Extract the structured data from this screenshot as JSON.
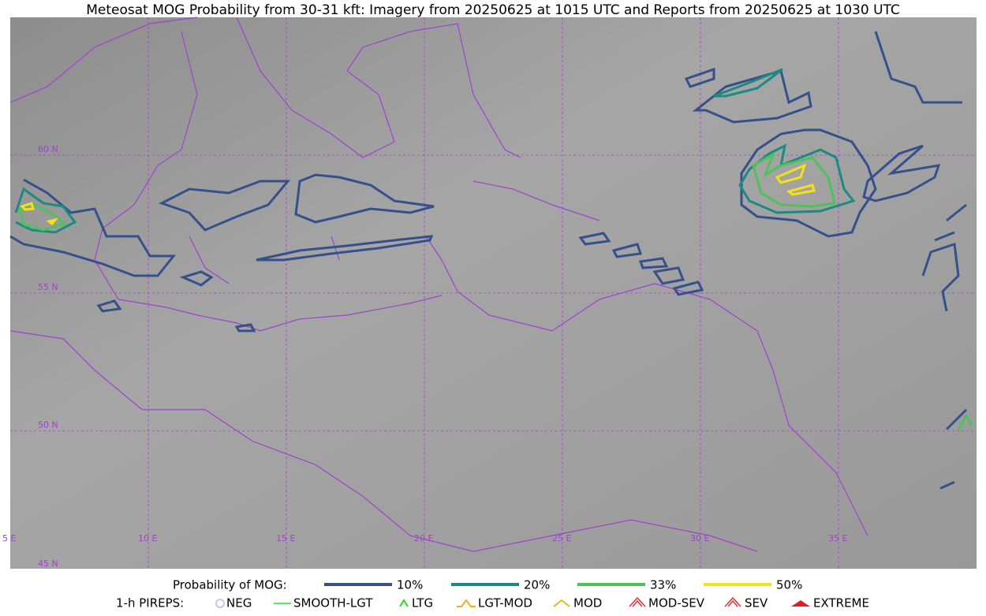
{
  "title": "Meteosat MOG Probability from 30-31 kft: Imagery from 20250625 at 1015 UTC and Reports from 20250625 at 1030 UTC",
  "latitude_labels": [
    "60 N",
    "55 N",
    "50 N",
    "45 N"
  ],
  "longitude_labels": [
    "5 E",
    "10 E",
    "15 E",
    "20 E",
    "25 E",
    "30 E",
    "35 E"
  ],
  "probability_legend": {
    "title": "Probability of MOG:",
    "levels": [
      "10%",
      "20%",
      "33%",
      "50%"
    ]
  },
  "pirep_legend": {
    "title": "1-h PIREPS:",
    "items": [
      "NEG",
      "SMOOTH-LGT",
      "LTG",
      "LGT-MOD",
      "MOD",
      "MOD-SEV",
      "SEV",
      "EXTREME"
    ]
  }
}
